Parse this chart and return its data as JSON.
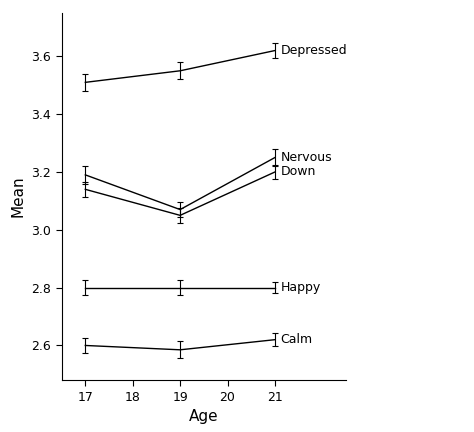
{
  "ages": [
    17,
    19,
    21
  ],
  "series": [
    {
      "name": "Depressed",
      "means": [
        3.51,
        3.55,
        3.62
      ],
      "errors": [
        0.03,
        0.03,
        0.025
      ]
    },
    {
      "name": "Nervous",
      "means": [
        3.19,
        3.07,
        3.25
      ],
      "errors": [
        0.03,
        0.025,
        0.03
      ]
    },
    {
      "name": "Down",
      "means": [
        3.14,
        3.05,
        3.2
      ],
      "errors": [
        0.025,
        0.025,
        0.025
      ]
    },
    {
      "name": "Happy",
      "means": [
        2.8,
        2.8,
        2.8
      ],
      "errors": [
        0.025,
        0.025,
        0.02
      ]
    },
    {
      "name": "Calm",
      "means": [
        2.6,
        2.585,
        2.62
      ],
      "errors": [
        0.025,
        0.03,
        0.022
      ]
    }
  ],
  "xlabel": "Age",
  "ylabel": "Mean",
  "xlim": [
    16.5,
    22.5
  ],
  "ylim": [
    2.48,
    3.75
  ],
  "xticks": [
    17,
    18,
    19,
    20,
    21
  ],
  "yticks": [
    2.6,
    2.8,
    3.0,
    3.2,
    3.4,
    3.6
  ],
  "line_color": "#000000",
  "background_color": "#ffffff",
  "label_fontsize": 9,
  "tick_fontsize": 9,
  "axis_label_fontsize": 11
}
